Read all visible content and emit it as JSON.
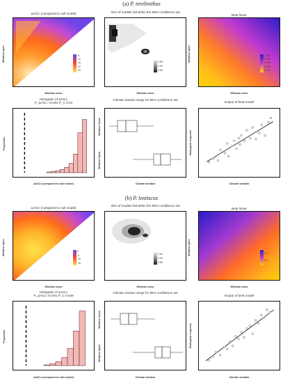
{
  "sections": [
    {
      "label": "(a)",
      "species": "P. terebinthus",
      "aicc_title": "ΔAICc (compared to null model)",
      "conf_title": "42% of models fall within the 95% confidence set",
      "beta_title": "Beta linear",
      "hist_title": "Histogram of ΔAICc",
      "hist_pvals": "P_ΔAICc <0.001   P_C 0.01",
      "window_title": "Climate window range for 95% confidence set",
      "best_title": "Output of best model",
      "aicc_legend": [
        "-5",
        "-10",
        "-15",
        "-20",
        "-25"
      ],
      "conf_legend": [
        "0.95",
        "0.90",
        "0.85"
      ],
      "beta_legend": [
        "0.200",
        "0.175",
        "0.150",
        "0.125",
        "0.100"
      ],
      "hist_x_ticks": [
        "-20",
        "-10",
        "0"
      ],
      "hist_y_ticks": [
        "0.4",
        "0.3",
        "0.2",
        "0.1",
        "0.0"
      ],
      "hist_xlabel": "ΔAICc (compared to null model)",
      "hist_ylabel": "Proportion",
      "window_x_ticks": [
        "365",
        "300",
        "200",
        "100",
        "12"
      ],
      "window_y_labels": [
        "Window Close",
        "Window Open"
      ],
      "window_xlabel": "Climate window",
      "best_x_ticks": [
        "-1",
        "0",
        "1"
      ],
      "best_y_ticks": [
        "1.25",
        "1.00",
        "0.75",
        "0.50"
      ],
      "best_xlabel": "Climate variable",
      "best_ylabel": "Biological response"
    },
    {
      "label": "(b)",
      "species": "P. lentiscus",
      "aicc_title": "ΔAICc (compared to null model)",
      "conf_title": "46% of models fall within the 95% confidence set",
      "beta_title": "Beta linear",
      "hist_title": "Histogram of ΔAICc",
      "hist_pvals": "P_ΔAICc <0.001   P_C 0.039",
      "window_title": "Climate window range for 95% confidence set",
      "best_title": "Output of best model",
      "aicc_legend": [
        "0",
        "-5",
        "-10",
        "-15"
      ],
      "conf_legend": [
        "0.95",
        "0.90",
        "0.85"
      ],
      "beta_legend": [
        "0.2",
        "0.1"
      ],
      "hist_x_ticks": [
        "-20",
        "-15",
        "-10",
        "-5",
        "0"
      ],
      "hist_y_ticks": [
        "0.4",
        "0.3",
        "0.2",
        "0.1",
        "0.0"
      ],
      "hist_xlabel": "ΔAICc (compared to null model)",
      "hist_ylabel": "Proportion",
      "window_x_ticks": [
        "365",
        "300",
        "200",
        "100",
        "0"
      ],
      "window_y_labels": [
        "Window Close",
        "Window Open"
      ],
      "window_xlabel": "Climate window",
      "best_x_ticks": [
        "-2",
        "-1",
        "0",
        "1",
        "2"
      ],
      "best_y_ticks": [
        "1.25",
        "1.00",
        "0.75",
        "0.50"
      ],
      "best_xlabel": "Climate variable",
      "best_ylabel": "Biological response"
    }
  ],
  "heatmap_axes": {
    "ylabel": "Window open",
    "xlabel": "Window close",
    "y_ticks": [
      "0",
      "75",
      "150",
      "225",
      "300"
    ],
    "x_ticks": [
      "360",
      "300",
      "200",
      "100",
      "0"
    ]
  },
  "colors": {
    "aicc_low": "#ffe24a",
    "aicc_mid": "#ff6a1a",
    "aicc_high": "#7d4be0",
    "bar_fill": "#f4b8b8",
    "bar_stroke": "#4a1a1a",
    "beta_high": "#2b1cc8",
    "beta_low": "#ffd400"
  },
  "chart_data": [
    {
      "type": "bar",
      "title": "Histogram of ΔAICc",
      "xlabel": "ΔAICc (compared to null model)",
      "ylabel": "Proportion",
      "ylim": [
        0,
        0.45
      ],
      "xlim": [
        -30,
        2
      ],
      "bins": [
        -16,
        -14,
        -12,
        -10,
        -8,
        -6,
        -4,
        -2,
        0
      ],
      "values": [
        0.005,
        0.01,
        0.015,
        0.025,
        0.04,
        0.07,
        0.14,
        0.3,
        0.4
      ]
    },
    {
      "type": "scatter",
      "title": "Output of best model",
      "xlabel": "Climate variable",
      "ylabel": "Biological response",
      "xlim": [
        -1.5,
        1.6
      ],
      "ylim": [
        0.35,
        1.45
      ],
      "x": [
        -1.3,
        -1.1,
        -0.9,
        -0.8,
        -0.6,
        -0.5,
        -0.45,
        -0.3,
        -0.2,
        -0.1,
        0,
        0.05,
        0.1,
        0.25,
        0.35,
        0.5,
        0.6,
        0.75,
        0.9,
        1.0,
        1.15,
        1.3,
        1.4
      ],
      "y": [
        0.55,
        0.62,
        0.58,
        0.78,
        0.72,
        0.9,
        0.66,
        0.85,
        0.95,
        0.8,
        1.0,
        0.88,
        1.05,
        0.95,
        1.15,
        1.0,
        1.2,
        0.98,
        1.1,
        1.25,
        1.05,
        1.3,
        1.38
      ],
      "fit": {
        "slope": 0.26,
        "intercept": 0.92
      }
    },
    {
      "type": "bar",
      "title": "Histogram of ΔAICc",
      "xlabel": "ΔAICc (compared to null model)",
      "ylabel": "Proportion",
      "ylim": [
        0,
        0.45
      ],
      "xlim": [
        -22,
        2
      ],
      "bins": [
        -12,
        -10,
        -8,
        -6,
        -4,
        -2,
        0
      ],
      "values": [
        0.005,
        0.015,
        0.03,
        0.06,
        0.13,
        0.26,
        0.41
      ]
    },
    {
      "type": "scatter",
      "title": "Output of best model",
      "xlabel": "Climate variable",
      "ylabel": "Biological response",
      "xlim": [
        -2.4,
        2.6
      ],
      "ylim": [
        0.35,
        1.45
      ],
      "x": [
        -2.1,
        -1.8,
        -1.6,
        -1.3,
        -1.0,
        -0.8,
        -0.6,
        -0.4,
        -0.2,
        0,
        0.2,
        0.4,
        0.6,
        0.8,
        1.0,
        1.2,
        1.4,
        1.6,
        1.8,
        2.0,
        2.2
      ],
      "y": [
        0.45,
        0.52,
        0.6,
        0.55,
        0.7,
        0.66,
        0.8,
        0.72,
        0.9,
        0.85,
        0.98,
        0.88,
        1.05,
        1.1,
        0.95,
        1.2,
        1.15,
        1.3,
        1.25,
        1.4,
        1.35
      ],
      "fit": {
        "slope": 0.2,
        "intercept": 0.9
      }
    }
  ]
}
